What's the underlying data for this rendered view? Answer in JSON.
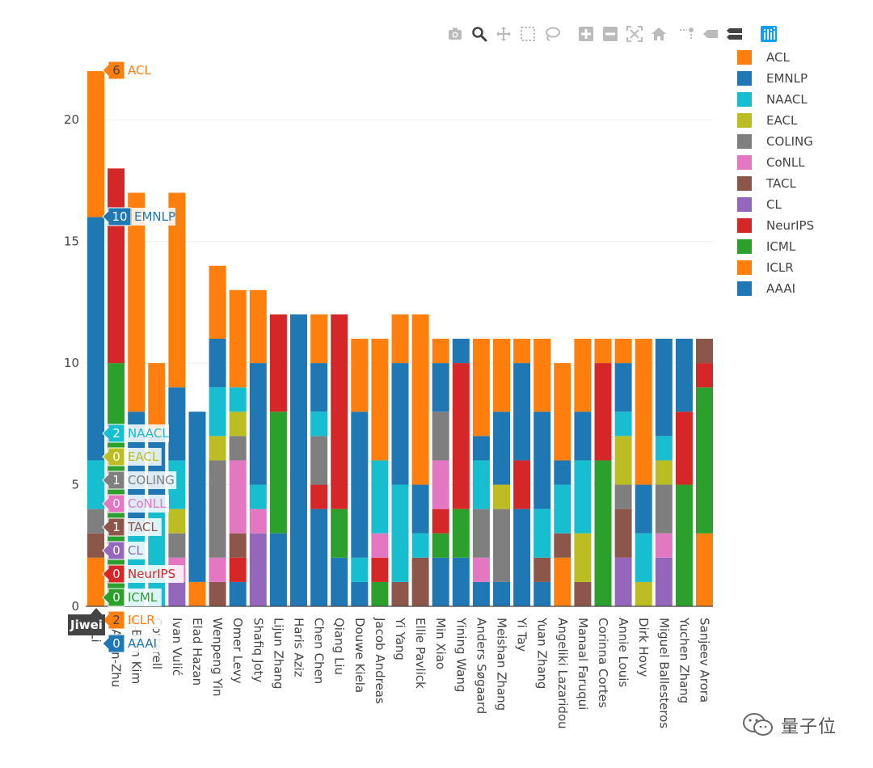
{
  "colors": {
    "ACL": "#ff7f0e",
    "EMNLP": "#1f77b4",
    "NAACL": "#17becf",
    "EACL": "#bcbd22",
    "COLING": "#7f7f7f",
    "CoNLL": "#e377c2",
    "TACL": "#8c564b",
    "CL": "#9467bd",
    "NeurIPS": "#d62728",
    "ICML": "#2ca02c",
    "ICLR": "#ff7f0e",
    "AAAI": "#1f77b4"
  },
  "modebar": {
    "buttons": [
      "camera-icon",
      "zoom-icon",
      "pan-icon",
      "box-select-icon",
      "lasso-select-icon",
      "zoom-in-icon",
      "zoom-out-icon",
      "autoscale-icon",
      "reset-axes-icon",
      "toggle-spikelines-icon",
      "hover-closest-icon",
      "hover-compare-icon",
      "plotly-logo-icon"
    ]
  },
  "watermark": {
    "text": "量子位"
  },
  "hover": {
    "x_label": "Jiwei",
    "series": [
      "ACL",
      "EMNLP",
      "NAACL",
      "EACL",
      "COLING",
      "CoNLL",
      "TACL",
      "CL",
      "NeurIPS",
      "ICML",
      "ICLR",
      "AAAI"
    ],
    "values": [
      "6",
      "10",
      "2",
      "0",
      "1",
      "0",
      "1",
      "0",
      "0",
      "0",
      "2",
      "0"
    ]
  },
  "chart_data": {
    "type": "bar",
    "barmode": "stack",
    "title": "",
    "xlabel": "",
    "ylabel": "",
    "ylim": [
      0,
      22
    ],
    "yticks": [
      0,
      5,
      10,
      15,
      20
    ],
    "grid": true,
    "legend_position": "right",
    "categories": [
      "Jiwei Li",
      "Zeyuan Allen-Zhu",
      "Young-Bum Kim",
      "Ryan Cotterell",
      "Ivan Vulić",
      "Elad Hazan",
      "Wenpeng Yin",
      "Omer Levy",
      "Shafiq Joty",
      "Lijun Zhang",
      "Haris Aziz",
      "Chen Chen",
      "Qiang Liu",
      "Douwe Kiela",
      "Jacob Andreas",
      "Yi Yang",
      "Ellie Pavlick",
      "Min Xiao",
      "Yining Wang",
      "Anders Søgaard",
      "Meishan Zhang",
      "Yi Tay",
      "Yuan Zhang",
      "Angeliki Lazaridou",
      "Manaal Faruqui",
      "Corinna Cortes",
      "Annie Louis",
      "Dirk Hovy",
      "Miguel Ballesteros",
      "Yuchen Zhang",
      "Sanjeev Arora"
    ],
    "category_labels": [
      "ei Li",
      "n Allen-Zhu",
      "g-Bum Kim",
      "Cotterell",
      "Ivan Vulić",
      "Elad Hazan",
      "Wenpeng Yin",
      "Omer Levy",
      "Shafiq Joty",
      "Lijun Zhang",
      "Haris Aziz",
      "Chen Chen",
      "Qiang Liu",
      "Douwe Kiela",
      "Jacob Andreas",
      "Yi Yang",
      "Ellie Pavlick",
      "Min Xiao",
      "Yining Wang",
      "Anders Søgaard",
      "Meishan Zhang",
      "Yi Tay",
      "Yuan Zhang",
      "Angeliki Lazaridou",
      "Manaal Faruqui",
      "Corinna Cortes",
      "Annie Louis",
      "Dirk Hovy",
      "Miguel Ballesteros",
      "Yuchen Zhang",
      "Sanjeev Arora"
    ],
    "series": [
      {
        "name": "AAAI",
        "values": [
          0,
          0,
          0,
          0,
          0,
          0,
          0,
          1,
          0,
          3,
          12,
          4,
          2,
          1,
          0,
          0,
          0,
          2,
          2,
          1,
          1,
          4,
          1,
          0,
          0,
          0,
          0,
          0,
          0,
          0,
          0
        ]
      },
      {
        "name": "ICLR",
        "values": [
          2,
          0,
          0,
          0,
          0,
          1,
          0,
          0,
          0,
          0,
          0,
          0,
          0,
          0,
          0,
          0,
          0,
          0,
          0,
          0,
          0,
          0,
          0,
          2,
          0,
          0,
          0,
          0,
          0,
          0,
          3
        ]
      },
      {
        "name": "ICML",
        "values": [
          0,
          10,
          0,
          0,
          0,
          0,
          0,
          0,
          0,
          5,
          0,
          0,
          2,
          0,
          1,
          0,
          0,
          1,
          2,
          0,
          0,
          0,
          0,
          0,
          0,
          6,
          0,
          0,
          0,
          5,
          6
        ]
      },
      {
        "name": "NeurIPS",
        "values": [
          0,
          8,
          0,
          0,
          0,
          0,
          0,
          1,
          0,
          4,
          0,
          1,
          8,
          0,
          1,
          0,
          0,
          1,
          6,
          0,
          0,
          2,
          0,
          0,
          0,
          4,
          0,
          0,
          0,
          3,
          1
        ]
      },
      {
        "name": "CL",
        "values": [
          0,
          0,
          0,
          0,
          1,
          0,
          0,
          0,
          3,
          0,
          0,
          0,
          0,
          0,
          0,
          0,
          0,
          0,
          0,
          0,
          0,
          0,
          0,
          0,
          0,
          0,
          2,
          0,
          2,
          0,
          0
        ]
      },
      {
        "name": "TACL",
        "values": [
          1,
          0,
          0,
          0,
          0,
          0,
          1,
          1,
          0,
          0,
          0,
          0,
          0,
          0,
          0,
          1,
          2,
          0,
          0,
          0,
          0,
          0,
          1,
          1,
          1,
          0,
          2,
          0,
          0,
          0,
          1
        ]
      },
      {
        "name": "CoNLL",
        "values": [
          0,
          0,
          0,
          0,
          1,
          0,
          1,
          3,
          1,
          0,
          0,
          0,
          0,
          0,
          1,
          0,
          0,
          2,
          0,
          1,
          0,
          0,
          0,
          0,
          0,
          0,
          0,
          0,
          1,
          0,
          0
        ]
      },
      {
        "name": "COLING",
        "values": [
          1,
          0,
          0,
          0,
          1,
          0,
          4,
          1,
          0,
          0,
          0,
          2,
          0,
          0,
          0,
          0,
          0,
          2,
          0,
          2,
          3,
          0,
          0,
          0,
          0,
          0,
          1,
          0,
          2,
          0,
          0
        ]
      },
      {
        "name": "EACL",
        "values": [
          0,
          0,
          0,
          0,
          1,
          0,
          1,
          1,
          0,
          0,
          0,
          0,
          0,
          0,
          0,
          0,
          0,
          0,
          0,
          0,
          1,
          0,
          0,
          0,
          2,
          0,
          2,
          1,
          1,
          0,
          0
        ]
      },
      {
        "name": "NAACL",
        "values": [
          2,
          0,
          3,
          4,
          2,
          0,
          2,
          1,
          1,
          0,
          0,
          1,
          0,
          1,
          3,
          4,
          1,
          0,
          0,
          2,
          0,
          0,
          2,
          2,
          3,
          0,
          1,
          2,
          1,
          0,
          0
        ]
      },
      {
        "name": "EMNLP",
        "values": [
          10,
          0,
          5,
          3,
          3,
          7,
          2,
          0,
          5,
          0,
          0,
          2,
          0,
          6,
          0,
          5,
          2,
          2,
          1,
          1,
          3,
          4,
          4,
          1,
          2,
          0,
          2,
          2,
          4,
          3,
          0
        ]
      },
      {
        "name": "ACL",
        "values": [
          6,
          0,
          9,
          3,
          8,
          0,
          3,
          4,
          3,
          0,
          0,
          2,
          0,
          3,
          5,
          2,
          7,
          1,
          0,
          4,
          3,
          1,
          3,
          4,
          3,
          1,
          1,
          6,
          0,
          0,
          0
        ]
      }
    ]
  }
}
